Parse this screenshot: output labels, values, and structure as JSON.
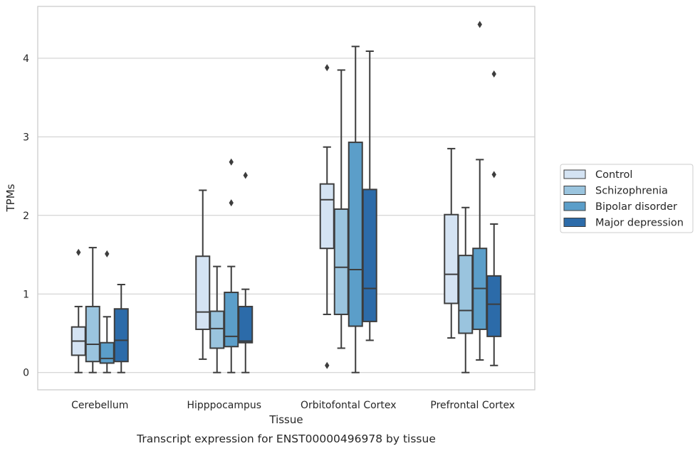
{
  "chart_data": {
    "type": "box",
    "categories": [
      "Cerebellum",
      "Hipppocampus",
      "Orbitofontal Cortex",
      "Prefrontal Cortex"
    ],
    "xlabel": "Tissue",
    "ylabel": "TPMs",
    "caption": "Transcript expression for ENST00000496978 by tissue",
    "ylim": [
      -0.22,
      4.66
    ],
    "yticks": [
      0,
      1,
      2,
      3,
      4
    ],
    "grid": "horizontal",
    "legend_position": "right",
    "series": [
      {
        "name": "Control",
        "color": "#d4e3f3",
        "boxes": [
          {
            "whislo": 0.0,
            "q1": 0.22,
            "med": 0.4,
            "q3": 0.58,
            "whishi": 0.84,
            "fliers": [
              1.53
            ]
          },
          {
            "whislo": 0.17,
            "q1": 0.55,
            "med": 0.77,
            "q3": 1.48,
            "whishi": 2.32,
            "fliers": []
          },
          {
            "whislo": 0.74,
            "q1": 1.58,
            "med": 2.2,
            "q3": 2.4,
            "whishi": 2.87,
            "fliers": [
              3.88,
              0.09
            ]
          },
          {
            "whislo": 0.44,
            "q1": 0.88,
            "med": 1.25,
            "q3": 2.01,
            "whishi": 2.85,
            "fliers": []
          }
        ]
      },
      {
        "name": "Schizophrenia",
        "color": "#9ac4de",
        "boxes": [
          {
            "whislo": 0.0,
            "q1": 0.14,
            "med": 0.36,
            "q3": 0.84,
            "whishi": 1.59,
            "fliers": []
          },
          {
            "whislo": 0.0,
            "q1": 0.31,
            "med": 0.56,
            "q3": 0.78,
            "whishi": 1.35,
            "fliers": []
          },
          {
            "whislo": 0.31,
            "q1": 0.74,
            "med": 1.34,
            "q3": 2.08,
            "whishi": 3.85,
            "fliers": []
          },
          {
            "whislo": 0.0,
            "q1": 0.5,
            "med": 0.79,
            "q3": 1.49,
            "whishi": 2.1,
            "fliers": []
          }
        ]
      },
      {
        "name": "Bipolar disorder",
        "color": "#5b9ec9",
        "boxes": [
          {
            "whislo": 0.0,
            "q1": 0.12,
            "med": 0.18,
            "q3": 0.38,
            "whishi": 0.71,
            "fliers": [
              1.51
            ]
          },
          {
            "whislo": 0.0,
            "q1": 0.33,
            "med": 0.46,
            "q3": 1.02,
            "whishi": 1.35,
            "fliers": [
              2.68,
              2.16
            ]
          },
          {
            "whislo": 0.0,
            "q1": 0.59,
            "med": 1.31,
            "q3": 2.93,
            "whishi": 4.15,
            "fliers": []
          },
          {
            "whislo": 0.16,
            "q1": 0.55,
            "med": 1.07,
            "q3": 1.58,
            "whishi": 2.71,
            "fliers": [
              4.43
            ]
          }
        ]
      },
      {
        "name": "Major depression",
        "color": "#2c6ba9",
        "boxes": [
          {
            "whislo": 0.0,
            "q1": 0.14,
            "med": 0.41,
            "q3": 0.81,
            "whishi": 1.12,
            "fliers": []
          },
          {
            "whislo": 0.0,
            "q1": 0.38,
            "med": 0.4,
            "q3": 0.84,
            "whishi": 1.06,
            "fliers": [
              2.51
            ]
          },
          {
            "whislo": 0.41,
            "q1": 0.65,
            "med": 1.07,
            "q3": 2.33,
            "whishi": 4.09,
            "fliers": []
          },
          {
            "whislo": 0.09,
            "q1": 0.46,
            "med": 0.87,
            "q3": 1.23,
            "whishi": 1.89,
            "fliers": [
              3.8,
              2.52
            ]
          }
        ]
      }
    ]
  }
}
